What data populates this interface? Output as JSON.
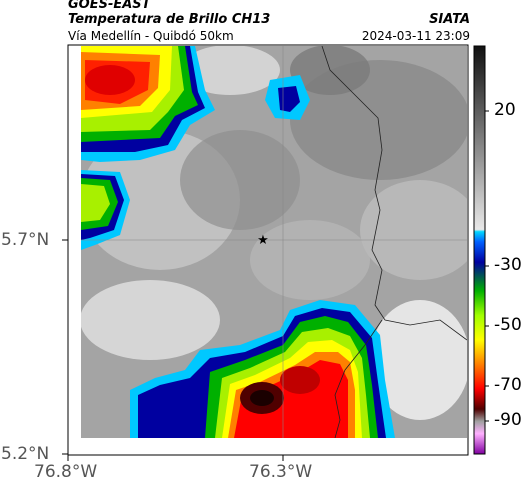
{
  "header": {
    "satellite": "GOES-EAST",
    "product": "Temperatura de Brillo CH13",
    "route": "Vía Medellín - Quibdó 50km",
    "agency": "SIATA",
    "timestamp": "2024-03-11 23:09"
  },
  "axes": {
    "lat_labels": [
      "5.7°N",
      "5.2°N"
    ],
    "lon_labels": [
      "76.8°W",
      "76.3°W"
    ]
  },
  "colorbar": {
    "labels": [
      "20",
      "-30",
      "-50",
      "-70",
      "-90"
    ],
    "colors": [
      "#000000",
      "#ffffff",
      "#00bfff",
      "#0000a0",
      "#00c000",
      "#ffff00",
      "#ff0000",
      "#500000",
      "#ff80ff"
    ]
  },
  "marker": {
    "icon": "star-marker-icon"
  }
}
